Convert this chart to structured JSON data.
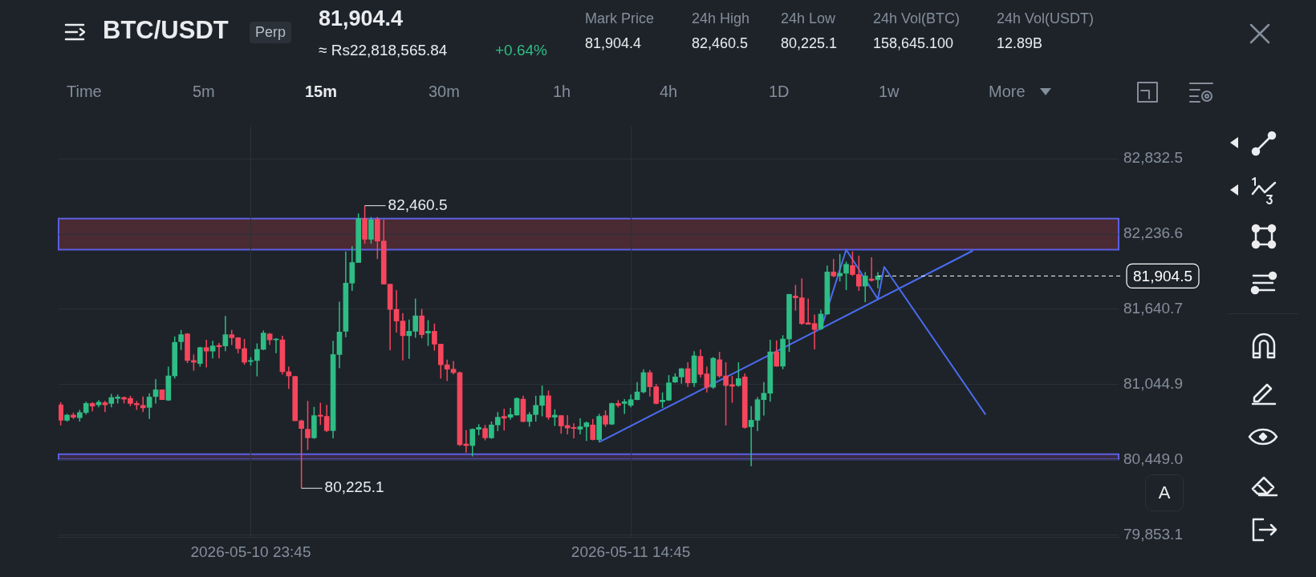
{
  "chart_data": {
    "type": "candlestick",
    "title": "BTC/USDT",
    "subtitle": "Perp",
    "annotations": [
      "81,904.4",
      "≈ Rs22,818,565.84",
      "+0.64%",
      "Mark Price",
      "81,904.4",
      "24h High",
      "82,460.5",
      "24h Low",
      "80,225.1",
      "24h Vol(BTC)",
      "158,645.100",
      "24h Vol(USDT)",
      "12.89B",
      "Time",
      "5m",
      "15m",
      "30m",
      "1h",
      "4h",
      "1D",
      "1w",
      "More",
      "A",
      {
        "text": "82,460.5",
        "x": "2026-05-11T04:15",
        "y": 82460.5
      },
      {
        "text": "80,225.1",
        "x": "2026-05-11T01:45",
        "y": 80225.1
      }
    ],
    "x": [
      "2026-05-10T16:15",
      "2026-05-10T16:30",
      "2026-05-10T16:45",
      "2026-05-10T17:00",
      "2026-05-10T17:15",
      "2026-05-10T17:30",
      "2026-05-10T17:45",
      "2026-05-10T18:00",
      "2026-05-10T18:15",
      "2026-05-10T18:30",
      "2026-05-10T18:45",
      "2026-05-10T19:00",
      "2026-05-10T19:15",
      "2026-05-10T19:30",
      "2026-05-10T19:45",
      "2026-05-10T20:00",
      "2026-05-10T20:15",
      "2026-05-10T20:30",
      "2026-05-10T20:45",
      "2026-05-10T21:00",
      "2026-05-10T21:15",
      "2026-05-10T21:30",
      "2026-05-10T21:45",
      "2026-05-10T22:00",
      "2026-05-10T22:15",
      "2026-05-10T22:30",
      "2026-05-10T22:45",
      "2026-05-10T23:00",
      "2026-05-10T23:15",
      "2026-05-10T23:30",
      "2026-05-10T23:45",
      "2026-05-11T00:00",
      "2026-05-11T00:15",
      "2026-05-11T00:30",
      "2026-05-11T00:45",
      "2026-05-11T01:00",
      "2026-05-11T01:15",
      "2026-05-11T01:30",
      "2026-05-11T01:45",
      "2026-05-11T02:00",
      "2026-05-11T02:15",
      "2026-05-11T02:30",
      "2026-05-11T02:45",
      "2026-05-11T03:00",
      "2026-05-11T03:15",
      "2026-05-11T03:30",
      "2026-05-11T03:45",
      "2026-05-11T04:00",
      "2026-05-11T04:15",
      "2026-05-11T04:30",
      "2026-05-11T04:45",
      "2026-05-11T05:00",
      "2026-05-11T05:15",
      "2026-05-11T05:30",
      "2026-05-11T05:45",
      "2026-05-11T06:00",
      "2026-05-11T06:15",
      "2026-05-11T06:30",
      "2026-05-11T06:45",
      "2026-05-11T07:00",
      "2026-05-11T07:15",
      "2026-05-11T07:30",
      "2026-05-11T07:45",
      "2026-05-11T08:00",
      "2026-05-11T08:15",
      "2026-05-11T08:30",
      "2026-05-11T08:45",
      "2026-05-11T09:00",
      "2026-05-11T09:15",
      "2026-05-11T09:30",
      "2026-05-11T09:45",
      "2026-05-11T10:00",
      "2026-05-11T10:15",
      "2026-05-11T10:30",
      "2026-05-11T10:45",
      "2026-05-11T11:00",
      "2026-05-11T11:15",
      "2026-05-11T11:30",
      "2026-05-11T11:45",
      "2026-05-11T12:00",
      "2026-05-11T12:15",
      "2026-05-11T12:30",
      "2026-05-11T12:45",
      "2026-05-11T13:00",
      "2026-05-11T13:15",
      "2026-05-11T13:30",
      "2026-05-11T13:45",
      "2026-05-11T14:00",
      "2026-05-11T14:15",
      "2026-05-11T14:30",
      "2026-05-11T14:45",
      "2026-05-11T15:00",
      "2026-05-11T15:15",
      "2026-05-11T15:30",
      "2026-05-11T15:45",
      "2026-05-11T16:00",
      "2026-05-11T16:15",
      "2026-05-11T16:30",
      "2026-05-11T16:45",
      "2026-05-11T17:00",
      "2026-05-11T17:15",
      "2026-05-11T17:30",
      "2026-05-11T17:45",
      "2026-05-11T18:00",
      "2026-05-11T18:15",
      "2026-05-11T18:30",
      "2026-05-11T18:45",
      "2026-05-11T19:00",
      "2026-05-11T19:15",
      "2026-05-11T19:30",
      "2026-05-11T19:45",
      "2026-05-11T20:00",
      "2026-05-11T20:15",
      "2026-05-11T20:30",
      "2026-05-11T20:45",
      "2026-05-11T21:00",
      "2026-05-11T21:15",
      "2026-05-11T21:30",
      "2026-05-11T21:45",
      "2026-05-11T22:00",
      "2026-05-11T22:15",
      "2026-05-11T22:30",
      "2026-05-11T22:45",
      "2026-05-11T23:00",
      "2026-05-11T23:15",
      "2026-05-11T23:30",
      "2026-05-11T23:45",
      "2026-05-12T00:00",
      "2026-05-12T00:15",
      "2026-05-12T00:30"
    ],
    "ohlc": [
      [
        80885,
        80906,
        80722,
        80763
      ],
      [
        80763,
        80814,
        80753,
        80804
      ],
      [
        80804,
        80824,
        80773,
        80787
      ],
      [
        80783,
        80845,
        80753,
        80824
      ],
      [
        80824,
        80910,
        80808,
        80896
      ],
      [
        80896,
        80906,
        80834,
        80875
      ],
      [
        80885,
        80922,
        80865,
        80906
      ],
      [
        80902,
        80916,
        80828,
        80885
      ],
      [
        80896,
        80971,
        80865,
        80943
      ],
      [
        80936,
        80967,
        80896,
        80947
      ],
      [
        80943,
        80951,
        80896,
        80930
      ],
      [
        80936,
        80957,
        80875,
        80896
      ],
      [
        80896,
        80916,
        80845,
        80885
      ],
      [
        80881,
        80951,
        80828,
        80861
      ],
      [
        80865,
        80977,
        80773,
        80947
      ],
      [
        80951,
        81089,
        80896,
        81004
      ],
      [
        81004,
        81004,
        80926,
        80926
      ],
      [
        80922,
        81187,
        80916,
        81114
      ],
      [
        81114,
        81426,
        81093,
        81379
      ],
      [
        81385,
        81477,
        81318,
        81440
      ],
      [
        81446,
        81453,
        81216,
        81236
      ],
      [
        81236,
        81283,
        81155,
        81222
      ],
      [
        81212,
        81344,
        81187,
        81338
      ],
      [
        81338,
        81399,
        81181,
        81310
      ],
      [
        81310,
        81391,
        81253,
        81351
      ],
      [
        81355,
        81375,
        81253,
        81344
      ],
      [
        81351,
        81589,
        81310,
        81440
      ],
      [
        81440,
        81477,
        81359,
        81416
      ],
      [
        81416,
        81420,
        81293,
        81330
      ],
      [
        81330,
        81406,
        81202,
        81222
      ],
      [
        81228,
        81263,
        81195,
        81236
      ],
      [
        81236,
        81371,
        81110,
        81324
      ],
      [
        81324,
        81473,
        81318,
        81453
      ],
      [
        81446,
        81453,
        81359,
        81399
      ],
      [
        81399,
        81412,
        81293,
        81406
      ],
      [
        81399,
        81432,
        81126,
        81147
      ],
      [
        81147,
        81187,
        81012,
        81114
      ],
      [
        81110,
        81114,
        80759,
        80759
      ],
      [
        80759,
        80767,
        80225.1,
        80698
      ],
      [
        80692,
        80916,
        80528,
        80624
      ],
      [
        80624,
        80869,
        80616,
        80800
      ],
      [
        80804,
        80902,
        80726,
        80794
      ],
      [
        80794,
        80885,
        80671,
        80681
      ],
      [
        80681,
        81391,
        80620,
        81283
      ],
      [
        81283,
        81701,
        81175,
        81461
      ],
      [
        81467,
        82099,
        81420,
        81848
      ],
      [
        81848,
        82140,
        81787,
        82011
      ],
      [
        82011,
        82399,
        82011,
        82358
      ],
      [
        82358,
        82460.5,
        82160,
        82195
      ],
      [
        82195,
        82371,
        82160,
        82350
      ],
      [
        82354,
        82371,
        82038,
        82181
      ],
      [
        82181,
        82350,
        81840,
        81840
      ],
      [
        81840,
        81840,
        81318,
        81640
      ],
      [
        81640,
        81793,
        81457,
        81548
      ],
      [
        81548,
        81610,
        81236,
        81432
      ],
      [
        81432,
        81559,
        81249,
        81467
      ],
      [
        81467,
        81726,
        81416,
        81589
      ],
      [
        81589,
        81644,
        81412,
        81440
      ],
      [
        81453,
        81555,
        81351,
        81467
      ],
      [
        81467,
        81528,
        81314,
        81365
      ],
      [
        81365,
        81365,
        81093,
        81202
      ],
      [
        81202,
        81242,
        81073,
        81167
      ],
      [
        81167,
        81232,
        81126,
        81140
      ],
      [
        81140,
        81147,
        80559,
        80569
      ],
      [
        80575,
        80685,
        80508,
        80563
      ],
      [
        80563,
        80698,
        80477,
        80692
      ],
      [
        80692,
        80732,
        80645,
        80706
      ],
      [
        80698,
        80726,
        80604,
        80624
      ],
      [
        80624,
        80753,
        80616,
        80726
      ],
      [
        80726,
        80828,
        80677,
        80787
      ],
      [
        80794,
        80855,
        80681,
        80779
      ],
      [
        80787,
        80861,
        80767,
        80808
      ],
      [
        80804,
        80943,
        80800,
        80936
      ],
      [
        80930,
        80957,
        80747,
        80753
      ],
      [
        80753,
        80828,
        80712,
        80808
      ],
      [
        80808,
        80957,
        80753,
        80881
      ],
      [
        80881,
        81038,
        80794,
        80957
      ],
      [
        80957,
        80998,
        80767,
        80787
      ],
      [
        80787,
        80849,
        80718,
        80804
      ],
      [
        80800,
        80804,
        80657,
        80718
      ],
      [
        80722,
        80804,
        80651,
        80702
      ],
      [
        80706,
        80739,
        80620,
        80698
      ],
      [
        80692,
        80779,
        80651,
        80712
      ],
      [
        80712,
        80753,
        80600,
        80743
      ],
      [
        80726,
        80773,
        80604,
        80610
      ],
      [
        80610,
        80814,
        80590,
        80794
      ],
      [
        80800,
        80841,
        80712,
        80732
      ],
      [
        80732,
        80902,
        80726,
        80896
      ],
      [
        80896,
        80922,
        80865,
        80881
      ],
      [
        80896,
        80930,
        80814,
        80910
      ],
      [
        80881,
        80967,
        80865,
        80926
      ],
      [
        80926,
        81065,
        80922,
        80987
      ],
      [
        80987,
        81167,
        80977,
        81140
      ],
      [
        81140,
        81161,
        80951,
        81028
      ],
      [
        81028,
        81049,
        80889,
        80896
      ],
      [
        80910,
        80983,
        80861,
        80922
      ],
      [
        80922,
        81120,
        80916,
        81059
      ],
      [
        81065,
        81134,
        81059,
        81106
      ],
      [
        81106,
        81175,
        81053,
        81171
      ],
      [
        81171,
        81222,
        81028,
        81059
      ],
      [
        81059,
        81310,
        81028,
        81273
      ],
      [
        81269,
        81324,
        81100,
        81126
      ],
      [
        81130,
        81187,
        80983,
        81024
      ],
      [
        81024,
        81263,
        81012,
        81253
      ],
      [
        81242,
        81304,
        81100,
        81114
      ],
      [
        81114,
        81222,
        80722,
        81038
      ],
      [
        81045,
        81114,
        80902,
        81032
      ],
      [
        81038,
        81222,
        81028,
        81093
      ],
      [
        81106,
        81134,
        80698,
        80706
      ],
      [
        80712,
        80875,
        80400,
        80763
      ],
      [
        80763,
        80947,
        80677,
        80926
      ],
      [
        80926,
        81065,
        80800,
        80977
      ],
      [
        80977,
        81399,
        80910,
        81304
      ],
      [
        81304,
        81395,
        81187,
        81191
      ],
      [
        81191,
        81436,
        81167,
        81406
      ],
      [
        81406,
        81763,
        81304,
        81759
      ],
      [
        81746,
        81834,
        81630,
        81732
      ],
      [
        81732,
        81885,
        81518,
        81528
      ],
      [
        81534,
        81726,
        81522,
        81522
      ],
      [
        81528,
        81599,
        81324,
        81481
      ],
      [
        81487,
        81636,
        81477,
        81603
      ],
      [
        81603,
        81987,
        81599,
        81936
      ],
      [
        81936,
        82038,
        81895,
        81905
      ],
      [
        81905,
        82079,
        81861,
        81926
      ],
      [
        81926,
        82018,
        81793,
        81997
      ],
      [
        81987,
        82099,
        81905,
        81916
      ],
      [
        81916,
        82065,
        81787,
        81824
      ],
      [
        81824,
        81936,
        81697,
        81905
      ],
      [
        81881,
        82052,
        81861,
        81869
      ],
      [
        81875,
        81936,
        81807,
        81904.5
      ]
    ],
    "series": [
      {
        "type": "line",
        "color": "#4a6cf0",
        "x": [
          "2026-05-11T13:30",
          "2026-05-12T04:15"
        ],
        "values": [
          80590,
          82105
        ]
      },
      {
        "type": "line",
        "color": "#4a6cf0",
        "x": [
          "2026-05-11T22:15",
          "2026-05-11T23:15",
          "2026-05-12T00:30",
          "2026-05-12T00:45",
          "2026-05-12T04:45"
        ],
        "values": [
          81481,
          82113,
          81722,
          81977,
          80808
        ]
      }
    ],
    "bands": [
      {
        "axis": "y",
        "from": 82113,
        "to": 82358,
        "color": "#4a2a33"
      },
      {
        "axis": "y",
        "from": 80453,
        "to": 80494,
        "color": "#3a2a45"
      }
    ],
    "ref_lines": [
      {
        "axis": "y",
        "value": 81904.5,
        "label": "81,904.5",
        "color": "#ffffff",
        "line_style": "dashed"
      }
    ],
    "xlim": [
      "2026-05-10T16:10",
      "2026-05-12T10:00"
    ],
    "xticks": [
      {
        "value": "2026-05-10T23:45",
        "label": "2026-05-10 23:45"
      },
      {
        "value": "2026-05-11T14:45",
        "label": "2026-05-11 14:45"
      }
    ],
    "ylim": [
      79840,
      83090
    ],
    "yticks": [
      {
        "value": 82832.5,
        "label": "82,832.5"
      },
      {
        "value": 82236.6,
        "label": "82,236.6"
      },
      {
        "value": 81640.7,
        "label": "81,640.7"
      },
      {
        "value": 81044.9,
        "label": "81,044.9"
      },
      {
        "value": 80449.0,
        "label": "80,449.0"
      },
      {
        "value": 79853.1,
        "label": "79,853.1"
      }
    ],
    "grid": true
  }
}
